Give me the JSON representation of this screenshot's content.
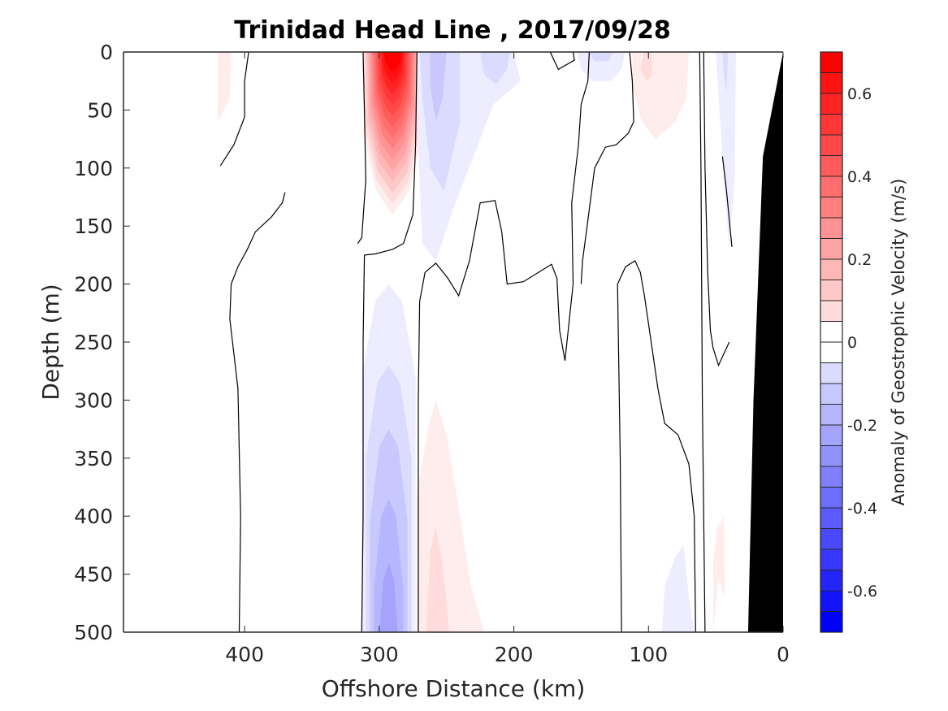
{
  "chart_data": {
    "type": "heatmap",
    "subtype": "filled-contour section",
    "title": "Trinidad Head Line , 2017/09/28",
    "xlabel": "Offshore Distance (km)",
    "ylabel": "Depth (m)",
    "colorbar_label": "Anomaly of Geostrophic Velocity (m/s)",
    "xlim": [
      490,
      0
    ],
    "ylim": [
      500,
      0
    ],
    "x_reversed": true,
    "y_reversed": true,
    "x_ticks": [
      400,
      300,
      200,
      100,
      0
    ],
    "x_tick_labels": [
      "400",
      "300",
      "200",
      "100",
      "0"
    ],
    "y_ticks": [
      0,
      50,
      100,
      150,
      200,
      250,
      300,
      350,
      400,
      450,
      500
    ],
    "y_tick_labels": [
      "0",
      "50",
      "100",
      "150",
      "200",
      "250",
      "300",
      "350",
      "400",
      "450",
      "500"
    ],
    "colorbar": {
      "range": [
        -0.7,
        0.7
      ],
      "step": 0.05,
      "ticks": [
        0.6,
        0.4,
        0.2,
        0,
        -0.2,
        -0.4,
        -0.6
      ],
      "tick_labels": [
        "0.6",
        "0.4",
        "0.2",
        "0",
        "-0.2",
        "-0.4",
        "-0.6"
      ],
      "positive_color": "#ff0000",
      "negative_color": "#0000ff",
      "zero_color": "#ffffff"
    },
    "zero_contour_color": "#000000",
    "bathymetry_color": "#000000",
    "features": [
      {
        "name": "surface-jet-positive",
        "center_km": 290,
        "depth_range_m": [
          0,
          150
        ],
        "peak_value": 0.7
      },
      {
        "name": "subsurface-negative-core",
        "center_km": 293,
        "depth_range_m": [
          200,
          500
        ],
        "peak_value": -0.3
      },
      {
        "name": "surface-negative-1",
        "center_km": 255,
        "depth_range_m": [
          0,
          180
        ],
        "peak_value": -0.15
      },
      {
        "name": "surface-negative-2",
        "center_km": 220,
        "depth_range_m": [
          0,
          30
        ],
        "peak_value": -0.1
      },
      {
        "name": "surface-negative-3",
        "center_km": 140,
        "depth_range_m": [
          0,
          25
        ],
        "peak_value": -0.1
      },
      {
        "name": "surface-positive-1",
        "center_km": 95,
        "depth_range_m": [
          0,
          75
        ],
        "peak_value": 0.1
      },
      {
        "name": "deep-positive-1",
        "center_km": 255,
        "depth_range_m": [
          300,
          500
        ],
        "peak_value": 0.1
      },
      {
        "name": "deep-negative-1",
        "center_km": 77,
        "depth_range_m": [
          430,
          500
        ],
        "peak_value": -0.05
      },
      {
        "name": "deep-positive-2",
        "center_km": 45,
        "depth_range_m": [
          430,
          500
        ],
        "peak_value": 0.1
      },
      {
        "name": "near-shore-negative",
        "center_km": 40,
        "depth_range_m": [
          0,
          170
        ],
        "peak_value": -0.05
      },
      {
        "name": "offshore-positive-strip",
        "center_km": 416,
        "depth_range_m": [
          0,
          60
        ],
        "peak_value": 0.05
      }
    ]
  }
}
